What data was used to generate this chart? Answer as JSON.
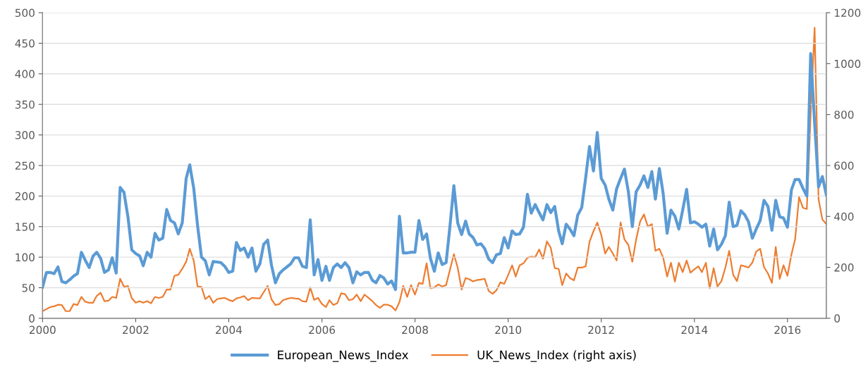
{
  "chart_data": {
    "type": "line",
    "x": [
      "2000-01",
      "2000-02",
      "2000-03",
      "2000-04",
      "2000-05",
      "2000-06",
      "2000-07",
      "2000-08",
      "2000-09",
      "2000-10",
      "2000-11",
      "2000-12",
      "2001-01",
      "2001-02",
      "2001-03",
      "2001-04",
      "2001-05",
      "2001-06",
      "2001-07",
      "2001-08",
      "2001-09",
      "2001-10",
      "2001-11",
      "2001-12",
      "2002-01",
      "2002-02",
      "2002-03",
      "2002-04",
      "2002-05",
      "2002-06",
      "2002-07",
      "2002-08",
      "2002-09",
      "2002-10",
      "2002-11",
      "2002-12",
      "2003-01",
      "2003-02",
      "2003-03",
      "2003-04",
      "2003-05",
      "2003-06",
      "2003-07",
      "2003-08",
      "2003-09",
      "2003-10",
      "2003-11",
      "2003-12",
      "2004-01",
      "2004-02",
      "2004-03",
      "2004-04",
      "2004-05",
      "2004-06",
      "2004-07",
      "2004-08",
      "2004-09",
      "2004-10",
      "2004-11",
      "2004-12",
      "2005-01",
      "2005-02",
      "2005-03",
      "2005-04",
      "2005-05",
      "2005-06",
      "2005-07",
      "2005-08",
      "2005-09",
      "2005-10",
      "2005-11",
      "2005-12",
      "2006-01",
      "2006-02",
      "2006-03",
      "2006-04",
      "2006-05",
      "2006-06",
      "2006-07",
      "2006-08",
      "2006-09",
      "2006-10",
      "2006-11",
      "2006-12",
      "2007-01",
      "2007-02",
      "2007-03",
      "2007-04",
      "2007-05",
      "2007-06",
      "2007-07",
      "2007-08",
      "2007-09",
      "2007-10",
      "2007-11",
      "2007-12",
      "2008-01",
      "2008-02",
      "2008-03",
      "2008-04",
      "2008-05",
      "2008-06",
      "2008-07",
      "2008-08",
      "2008-09",
      "2008-10",
      "2008-11",
      "2008-12",
      "2009-01",
      "2009-02",
      "2009-03",
      "2009-04",
      "2009-05",
      "2009-06",
      "2009-07",
      "2009-08",
      "2009-09",
      "2009-10",
      "2009-11",
      "2009-12",
      "2010-01",
      "2010-02",
      "2010-03",
      "2010-04",
      "2010-05",
      "2010-06",
      "2010-07",
      "2010-08",
      "2010-09",
      "2010-10",
      "2010-11",
      "2010-12",
      "2011-01",
      "2011-02",
      "2011-03",
      "2011-04",
      "2011-05",
      "2011-06",
      "2011-07",
      "2011-08",
      "2011-09",
      "2011-10",
      "2011-11",
      "2011-12",
      "2012-01",
      "2012-02",
      "2012-03",
      "2012-04",
      "2012-05",
      "2012-06",
      "2012-07",
      "2012-08",
      "2012-09",
      "2012-10",
      "2012-11",
      "2012-12",
      "2013-01",
      "2013-02",
      "2013-03",
      "2013-04",
      "2013-05",
      "2013-06",
      "2013-07",
      "2013-08",
      "2013-09",
      "2013-10",
      "2013-11",
      "2013-12",
      "2014-01",
      "2014-02",
      "2014-03",
      "2014-04",
      "2014-05",
      "2014-06",
      "2014-07",
      "2014-08",
      "2014-09",
      "2014-10",
      "2014-11",
      "2014-12",
      "2015-01",
      "2015-02",
      "2015-03",
      "2015-04",
      "2015-05",
      "2015-06",
      "2015-07",
      "2015-08",
      "2015-09",
      "2015-10",
      "2015-11",
      "2015-12",
      "2016-01",
      "2016-02",
      "2016-03",
      "2016-04",
      "2016-05",
      "2016-06",
      "2016-07",
      "2016-08",
      "2016-09",
      "2016-10",
      "2016-11"
    ],
    "series": [
      {
        "name": "European_News_Index",
        "color": "#5b9bd5",
        "values": [
          51,
          75,
          75,
          73,
          84,
          60,
          58,
          63,
          69,
          73,
          108,
          95,
          83,
          102,
          108,
          98,
          75,
          79,
          99,
          74,
          214,
          206,
          166,
          112,
          106,
          102,
          86,
          108,
          100,
          139,
          128,
          131,
          178,
          160,
          156,
          138,
          156,
          229,
          251,
          213,
          152,
          100,
          94,
          71,
          93,
          92,
          91,
          85,
          75,
          77,
          124,
          111,
          115,
          100,
          115,
          77,
          89,
          121,
          128,
          87,
          58,
          73,
          79,
          84,
          89,
          99,
          99,
          85,
          83,
          161,
          71,
          96,
          62,
          85,
          62,
          83,
          89,
          83,
          91,
          83,
          58,
          76,
          71,
          75,
          75,
          62,
          58,
          70,
          66,
          56,
          61,
          47,
          167,
          107,
          107,
          108,
          108,
          160,
          129,
          138,
          98,
          77,
          107,
          88,
          91,
          150,
          217,
          156,
          137,
          159,
          138,
          132,
          120,
          122,
          114,
          97,
          91,
          104,
          106,
          132,
          115,
          143,
          137,
          138,
          149,
          203,
          172,
          186,
          173,
          161,
          186,
          173,
          183,
          143,
          122,
          154,
          146,
          135,
          169,
          181,
          230,
          281,
          241,
          304,
          229,
          218,
          195,
          177,
          212,
          229,
          244,
          207,
          150,
          207,
          218,
          233,
          214,
          240,
          195,
          245,
          204,
          139,
          177,
          167,
          146,
          177,
          211,
          156,
          158,
          154,
          149,
          154,
          118,
          146,
          112,
          121,
          135,
          190,
          150,
          152,
          176,
          169,
          158,
          131,
          146,
          160,
          193,
          183,
          144,
          193,
          166,
          164,
          149,
          210,
          227,
          227,
          213,
          200,
          433,
          320,
          215,
          232,
          202
        ]
      },
      {
        "name": "UK_News_Index (right axis)",
        "color": "#ed7d31",
        "axis": "y2",
        "values": [
          28,
          36,
          44,
          47,
          53,
          52,
          28,
          28,
          56,
          52,
          84,
          65,
          61,
          61,
          88,
          100,
          67,
          69,
          84,
          80,
          155,
          124,
          127,
          79,
          61,
          67,
          61,
          67,
          59,
          84,
          80,
          84,
          113,
          113,
          167,
          171,
          194,
          222,
          273,
          227,
          125,
          123,
          75,
          88,
          61,
          75,
          78,
          80,
          72,
          67,
          78,
          82,
          87,
          71,
          80,
          79,
          78,
          102,
          127,
          75,
          52,
          56,
          71,
          76,
          80,
          78,
          77,
          67,
          65,
          121,
          72,
          80,
          56,
          44,
          71,
          52,
          59,
          98,
          95,
          71,
          75,
          93,
          67,
          93,
          80,
          67,
          52,
          41,
          53,
          53,
          47,
          31,
          63,
          127,
          84,
          130,
          93,
          139,
          135,
          216,
          118,
          121,
          133,
          125,
          130,
          190,
          252,
          199,
          113,
          158,
          153,
          145,
          150,
          152,
          155,
          107,
          96,
          110,
          141,
          135,
          170,
          208,
          164,
          208,
          216,
          238,
          242,
          240,
          270,
          234,
          302,
          277,
          197,
          194,
          130,
          176,
          158,
          149,
          199,
          199,
          204,
          300,
          342,
          376,
          328,
          254,
          280,
          254,
          227,
          376,
          310,
          288,
          222,
          310,
          379,
          408,
          360,
          370,
          265,
          273,
          238,
          164,
          218,
          144,
          218,
          181,
          227,
          179,
          192,
          204,
          181,
          218,
          118,
          197,
          125,
          146,
          199,
          265,
          171,
          146,
          208,
          204,
          199,
          219,
          262,
          273,
          201,
          176,
          139,
          280,
          155,
          208,
          167,
          250,
          310,
          476,
          434,
          429,
          800,
          1141,
          467,
          388,
          370
        ]
      }
    ],
    "xlim": [
      "2000-01",
      "2016-11"
    ],
    "xticks": [
      "2000",
      "2002",
      "2004",
      "2006",
      "2008",
      "2010",
      "2012",
      "2014",
      "2016"
    ],
    "ylim": [
      0,
      500
    ],
    "yticks": [
      0,
      50,
      100,
      150,
      200,
      250,
      300,
      350,
      400,
      450,
      500
    ],
    "y2lim": [
      0,
      1200
    ],
    "y2ticks": [
      0,
      200,
      400,
      600,
      800,
      1000,
      1200
    ],
    "grid": "y",
    "legend": "bottom",
    "marker": "none",
    "line_style": "solid"
  }
}
